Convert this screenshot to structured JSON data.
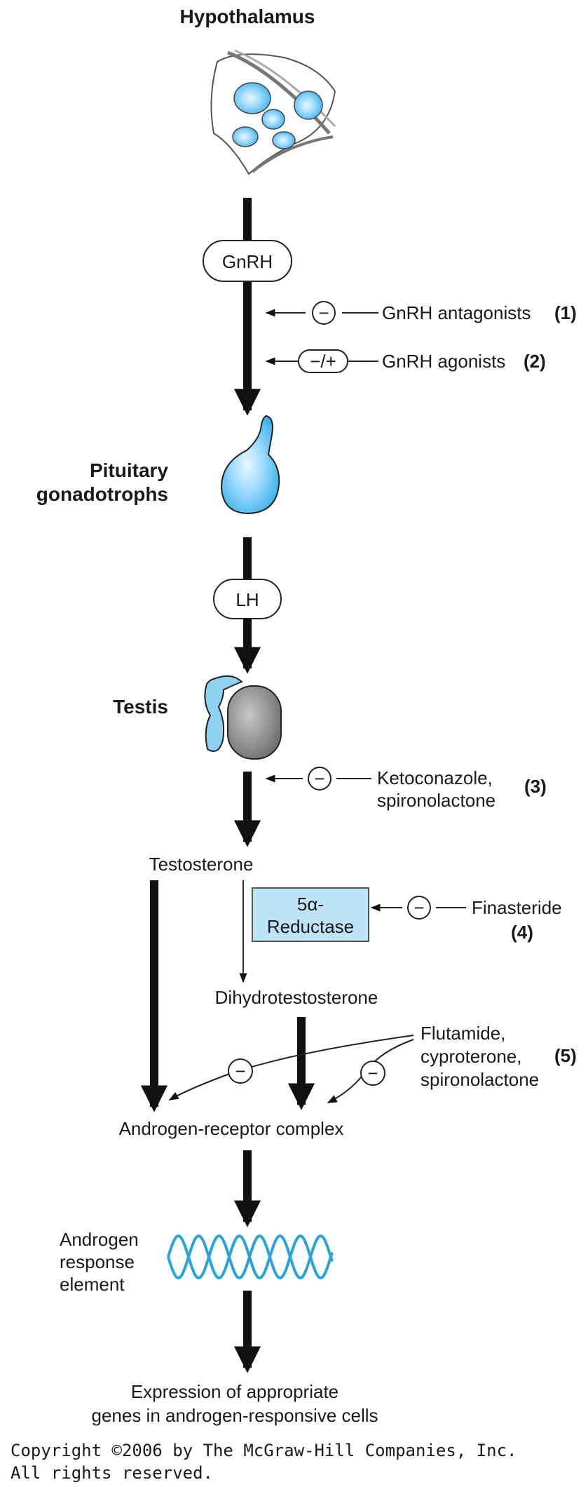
{
  "hypothalamus": {
    "label": "Hypothalamus"
  },
  "gnrh": {
    "label": "GnRH"
  },
  "gnrh_antagonists": {
    "symbol": "−",
    "label": "GnRH antagonists",
    "ref": "(1)"
  },
  "gnrh_agonists": {
    "symbol": "−/+",
    "label": "GnRH agonists",
    "ref": "(2)"
  },
  "pituitary": {
    "line1": "Pituitary",
    "line2": "gonadotrophs"
  },
  "lh": {
    "label": "LH"
  },
  "testis": {
    "label": "Testis"
  },
  "keto": {
    "symbol": "−",
    "line1": "Ketoconazole,",
    "line2": "spironolactone",
    "ref": "(3)"
  },
  "testosterone": {
    "label": "Testosterone"
  },
  "reductase": {
    "line1": "5α-",
    "line2": "Reductase"
  },
  "finasteride": {
    "symbol": "−",
    "label": "Finasteride",
    "ref": "(4)"
  },
  "dht": {
    "label": "Dihydrotestosterone"
  },
  "flutamide": {
    "symbol_left": "−",
    "symbol_right": "−",
    "line1": "Flutamide,",
    "line2": "cyproterone,",
    "line3": "spironolactone",
    "ref": "(5)"
  },
  "arc": {
    "label": "Androgen-receptor complex"
  },
  "are": {
    "line1": "Androgen",
    "line2": "response",
    "line3": "element"
  },
  "expression": {
    "line1": "Expression of appropriate",
    "line2": "genes in androgen-responsive cells"
  },
  "copyright": {
    "line1": "Copyright ©2006 by The McGraw-Hill Companies, Inc.",
    "line2": "All rights reserved."
  },
  "colors": {
    "accent_blue": "#8ccff0",
    "dna_blue": "#2aa3d8",
    "box_fill": "#bfe4f7",
    "testis_gray": "#8a8a8a"
  }
}
